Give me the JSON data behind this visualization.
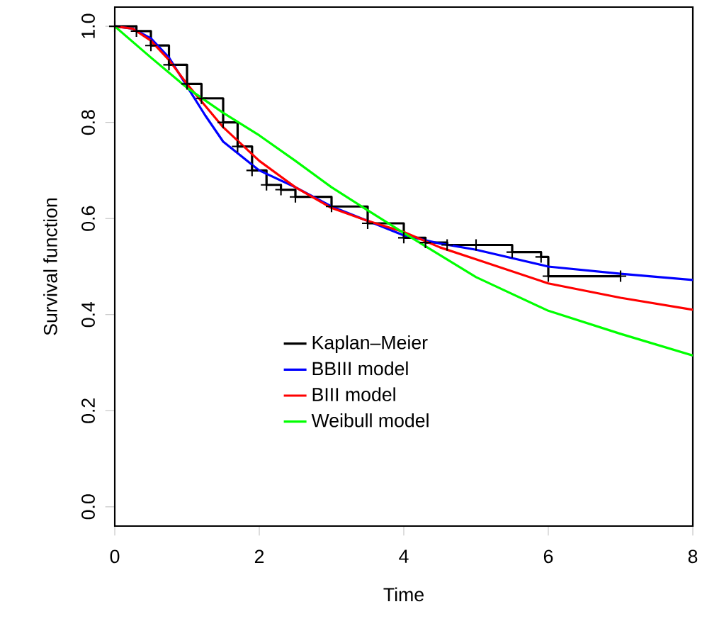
{
  "chart_data": {
    "type": "line",
    "xlabel": "Time",
    "ylabel": "Survival function",
    "xlim": [
      0,
      8
    ],
    "ylim": [
      -0.04,
      1.04
    ],
    "xticks": [
      0,
      2,
      4,
      6,
      8
    ],
    "yticks": [
      {
        "value": 0,
        "label": "0.0"
      },
      0.2,
      0.4,
      0.6,
      0.8,
      {
        "value": 1,
        "label": "1.0"
      }
    ],
    "legend": "bottom",
    "grid": false,
    "series": [
      {
        "name": "Kaplan–Meier",
        "color": "#000000",
        "type": "step",
        "marker": "cross",
        "x": [
          0,
          0.3,
          0.5,
          0.75,
          1,
          1.2,
          1.5,
          1.7,
          1.9,
          2.1,
          2.3,
          2.5,
          3,
          3.5,
          4,
          4.3,
          4.6,
          5,
          5.5,
          5.9,
          6.0,
          7.0
        ],
        "values": [
          1,
          0.99,
          0.96,
          0.92,
          0.88,
          0.85,
          0.8,
          0.75,
          0.7,
          0.67,
          0.66,
          0.645,
          0.625,
          0.59,
          0.56,
          0.55,
          0.545,
          0.545,
          0.53,
          0.52,
          0.48,
          0.48
        ]
      },
      {
        "name": "BBIII model",
        "color": "#0000ff",
        "x": [
          0,
          0.25,
          0.5,
          0.75,
          1,
          1.25,
          1.5,
          2,
          2.5,
          3,
          3.5,
          4,
          4.5,
          5,
          6,
          7,
          8
        ],
        "values": [
          1,
          0.995,
          0.975,
          0.935,
          0.875,
          0.815,
          0.76,
          0.7,
          0.665,
          0.625,
          0.595,
          0.565,
          0.548,
          0.535,
          0.5,
          0.485,
          0.472
        ]
      },
      {
        "name": "BIII model",
        "color": "#ff0000",
        "x": [
          0,
          0.25,
          0.5,
          0.75,
          1,
          1.25,
          1.5,
          2,
          2.5,
          3,
          3.5,
          4,
          4.5,
          5,
          6,
          7,
          8
        ],
        "values": [
          1,
          0.995,
          0.97,
          0.93,
          0.88,
          0.835,
          0.79,
          0.72,
          0.665,
          0.622,
          0.595,
          0.572,
          0.54,
          0.515,
          0.465,
          0.435,
          0.41
        ]
      },
      {
        "name": "Weibull model",
        "color": "#00ff00",
        "x": [
          0,
          0.5,
          1,
          1.5,
          2,
          2.5,
          3,
          3.5,
          4,
          5,
          6,
          7,
          8
        ],
        "values": [
          1,
          0.935,
          0.872,
          0.82,
          0.773,
          0.72,
          0.665,
          0.617,
          0.57,
          0.478,
          0.408,
          0.36,
          0.315
        ]
      }
    ]
  }
}
